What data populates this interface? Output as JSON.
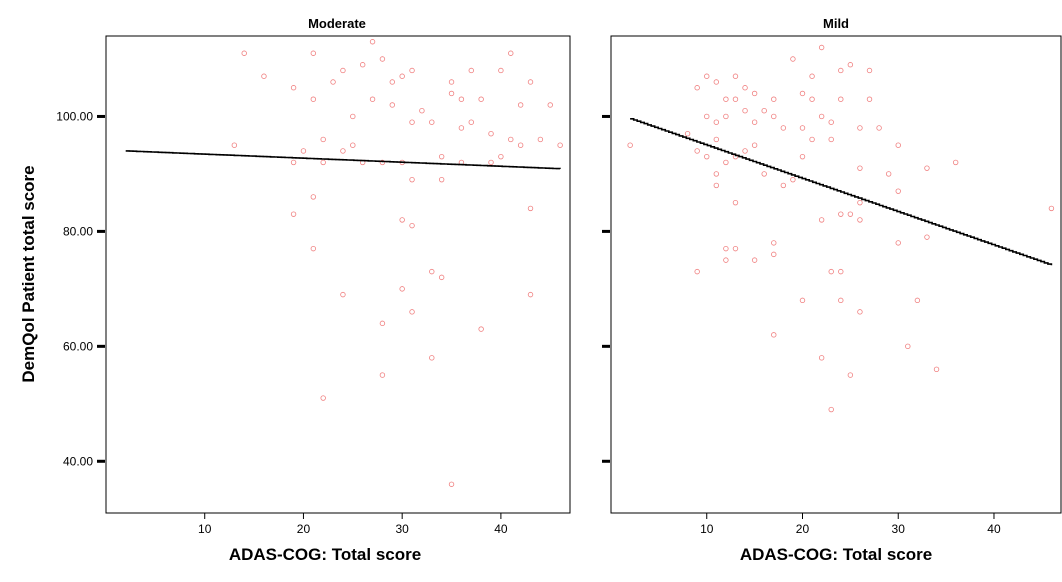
{
  "chart_data": {
    "type": "scatter",
    "ylabel": "DemQol Patient total score",
    "xlabel": "ADAS-COG: Total score",
    "xlim": [
      0,
      47
    ],
    "ylim": [
      31,
      114
    ],
    "x_ticks": [
      10,
      20,
      30,
      40
    ],
    "y_ticks": [
      40,
      60,
      80,
      100
    ],
    "y_tick_labels": [
      "40.00",
      "60.00",
      "80.00",
      "100.00"
    ],
    "marker_color": "#f08080",
    "line_color": "#000000",
    "grid": false,
    "panels": [
      {
        "title": "Moderate",
        "xlabel": "ADAS-COG: Total score",
        "fit_line": {
          "x": [
            2,
            46
          ],
          "y": [
            94.0,
            90.9
          ]
        },
        "points": [
          [
            14,
            111
          ],
          [
            16,
            107
          ],
          [
            19,
            105
          ],
          [
            21,
            111
          ],
          [
            21,
            103
          ],
          [
            23,
            106
          ],
          [
            24,
            108
          ],
          [
            26,
            109
          ],
          [
            27,
            113
          ],
          [
            28,
            110
          ],
          [
            27,
            103
          ],
          [
            29,
            106
          ],
          [
            30,
            107
          ],
          [
            31,
            108
          ],
          [
            29,
            102
          ],
          [
            25,
            100
          ],
          [
            31,
            99
          ],
          [
            32,
            101
          ],
          [
            33,
            99
          ],
          [
            35,
            104
          ],
          [
            35,
            106
          ],
          [
            36,
            103
          ],
          [
            37,
            108
          ],
          [
            38,
            103
          ],
          [
            40,
            108
          ],
          [
            41,
            111
          ],
          [
            42,
            102
          ],
          [
            43,
            106
          ],
          [
            45,
            102
          ],
          [
            37,
            99
          ],
          [
            36,
            98
          ],
          [
            39,
            97
          ],
          [
            41,
            96
          ],
          [
            42,
            95
          ],
          [
            44,
            96
          ],
          [
            46,
            95
          ],
          [
            40,
            93
          ],
          [
            34,
            93
          ],
          [
            31,
            89
          ],
          [
            34,
            89
          ],
          [
            28,
            92
          ],
          [
            25,
            95
          ],
          [
            24,
            94
          ],
          [
            22,
            96
          ],
          [
            20,
            94
          ],
          [
            19,
            92
          ],
          [
            13,
            95
          ],
          [
            21,
            86
          ],
          [
            19,
            83
          ],
          [
            30,
            82
          ],
          [
            31,
            81
          ],
          [
            43,
            84
          ],
          [
            21,
            77
          ],
          [
            33,
            73
          ],
          [
            34,
            72
          ],
          [
            30,
            70
          ],
          [
            24,
            69
          ],
          [
            43,
            69
          ],
          [
            31,
            66
          ],
          [
            28,
            64
          ],
          [
            38,
            63
          ],
          [
            33,
            58
          ],
          [
            28,
            55
          ],
          [
            22,
            51
          ],
          [
            35,
            36
          ],
          [
            22,
            92
          ],
          [
            26,
            92
          ],
          [
            30,
            92
          ],
          [
            36,
            92
          ],
          [
            39,
            92
          ]
        ]
      },
      {
        "title": "Mild",
        "xlabel": "ADAS-COG: Total score",
        "fit_line": {
          "x": [
            2,
            46
          ],
          "y": [
            99.6,
            74.1
          ]
        },
        "points": [
          [
            2,
            95
          ],
          [
            8,
            97
          ],
          [
            9,
            105
          ],
          [
            10,
            107
          ],
          [
            10,
            100
          ],
          [
            11,
            106
          ],
          [
            11,
            99
          ],
          [
            11,
            96
          ],
          [
            12,
            103
          ],
          [
            12,
            100
          ],
          [
            13,
            107
          ],
          [
            13,
            103
          ],
          [
            14,
            105
          ],
          [
            14,
            101
          ],
          [
            15,
            104
          ],
          [
            15,
            99
          ],
          [
            16,
            101
          ],
          [
            17,
            103
          ],
          [
            17,
            100
          ],
          [
            18,
            98
          ],
          [
            19,
            110
          ],
          [
            20,
            104
          ],
          [
            20,
            98
          ],
          [
            21,
            107
          ],
          [
            21,
            103
          ],
          [
            22,
            112
          ],
          [
            22,
            100
          ],
          [
            23,
            99
          ],
          [
            23,
            96
          ],
          [
            24,
            108
          ],
          [
            24,
            103
          ],
          [
            25,
            109
          ],
          [
            26,
            98
          ],
          [
            27,
            108
          ],
          [
            27,
            103
          ],
          [
            28,
            98
          ],
          [
            26,
            91
          ],
          [
            30,
            95
          ],
          [
            33,
            91
          ],
          [
            36,
            92
          ],
          [
            9,
            94
          ],
          [
            10,
            93
          ],
          [
            11,
            90
          ],
          [
            12,
            92
          ],
          [
            13,
            93
          ],
          [
            14,
            94
          ],
          [
            15,
            95
          ],
          [
            16,
            90
          ],
          [
            18,
            88
          ],
          [
            19,
            89
          ],
          [
            20,
            93
          ],
          [
            13,
            85
          ],
          [
            26,
            85
          ],
          [
            30,
            87
          ],
          [
            24,
            83
          ],
          [
            25,
            83
          ],
          [
            22,
            82
          ],
          [
            26,
            82
          ],
          [
            46,
            84
          ],
          [
            33,
            79
          ],
          [
            30,
            78
          ],
          [
            12,
            77
          ],
          [
            13,
            77
          ],
          [
            15,
            75
          ],
          [
            17,
            78
          ],
          [
            17,
            76
          ],
          [
            12,
            75
          ],
          [
            9,
            73
          ],
          [
            23,
            73
          ],
          [
            24,
            73
          ],
          [
            20,
            68
          ],
          [
            24,
            68
          ],
          [
            32,
            68
          ],
          [
            26,
            66
          ],
          [
            17,
            62
          ],
          [
            31,
            60
          ],
          [
            22,
            58
          ],
          [
            34,
            56
          ],
          [
            25,
            55
          ],
          [
            23,
            49
          ],
          [
            11,
            88
          ],
          [
            21,
            96
          ],
          [
            29,
            90
          ]
        ]
      }
    ]
  }
}
